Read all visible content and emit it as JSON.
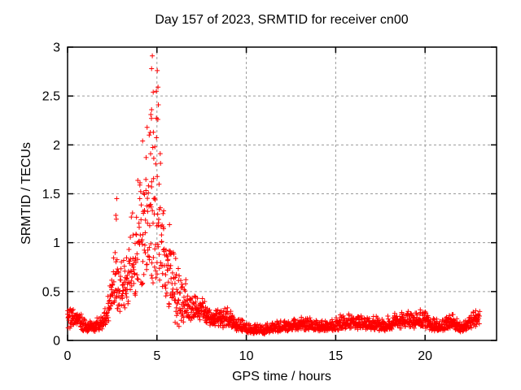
{
  "page": {
    "background_color": "#ffffff",
    "text_color": "#000000"
  },
  "chart_data": {
    "type": "scatter",
    "title": "Day 157 of 2023, SRMTID for receiver cn00",
    "xlabel": "GPS time / hours",
    "ylabel": "SRMTID / TECUs",
    "series_name": "SRMTID",
    "xlim": [
      0,
      24
    ],
    "ylim": [
      0,
      3
    ],
    "xticks": [
      {
        "v": 0,
        "label": "0"
      },
      {
        "v": 5,
        "label": "5"
      },
      {
        "v": 10,
        "label": "10"
      },
      {
        "v": 15,
        "label": "15"
      },
      {
        "v": 20,
        "label": "20"
      }
    ],
    "yticks": [
      {
        "v": 0,
        "label": "0"
      },
      {
        "v": 0.5,
        "label": "0.5"
      },
      {
        "v": 1,
        "label": "1"
      },
      {
        "v": 1.5,
        "label": "1.5"
      },
      {
        "v": 2,
        "label": "2"
      },
      {
        "v": 2.5,
        "label": "2.5"
      },
      {
        "v": 3,
        "label": "3"
      }
    ],
    "grid": "dashed",
    "legend": "none",
    "marker": "plus",
    "marker_size_px": 7,
    "marker_color": "#ff0000",
    "axis_color": "#000000",
    "grid_color": "#9a9a9a",
    "time_range": [
      0,
      23.05
    ],
    "sampling_interval_hours": 0.0125,
    "seed": 157,
    "envelope_lo_hi_by_hour": [
      [
        0.0,
        0.12,
        0.44
      ],
      [
        0.2,
        0.13,
        0.38
      ],
      [
        0.5,
        0.14,
        0.33
      ],
      [
        0.8,
        0.1,
        0.28
      ],
      [
        1.2,
        0.08,
        0.22
      ],
      [
        1.6,
        0.09,
        0.24
      ],
      [
        2.0,
        0.12,
        0.3
      ],
      [
        2.3,
        0.18,
        0.5
      ],
      [
        2.5,
        0.28,
        0.92
      ],
      [
        2.7,
        0.32,
        1.05
      ],
      [
        2.9,
        0.28,
        0.85
      ],
      [
        3.1,
        0.3,
        0.95
      ],
      [
        3.4,
        0.35,
        1.1
      ],
      [
        3.7,
        0.4,
        1.45
      ],
      [
        4.0,
        0.45,
        1.75
      ],
      [
        4.3,
        0.5,
        2.05
      ],
      [
        4.6,
        0.5,
        2.4
      ],
      [
        4.8,
        0.48,
        2.58
      ],
      [
        5.0,
        0.5,
        2.45
      ],
      [
        5.2,
        0.45,
        2.05
      ],
      [
        5.4,
        0.4,
        1.65
      ],
      [
        5.7,
        0.3,
        1.35
      ],
      [
        6.0,
        0.15,
        0.95
      ],
      [
        6.3,
        0.1,
        0.72
      ],
      [
        6.7,
        0.15,
        0.6
      ],
      [
        7.1,
        0.18,
        0.5
      ],
      [
        7.5,
        0.2,
        0.47
      ],
      [
        8.0,
        0.15,
        0.38
      ],
      [
        8.5,
        0.13,
        0.33
      ],
      [
        8.9,
        0.12,
        0.4
      ],
      [
        9.3,
        0.1,
        0.28
      ],
      [
        9.8,
        0.08,
        0.22
      ],
      [
        10.3,
        0.07,
        0.18
      ],
      [
        11.0,
        0.06,
        0.16
      ],
      [
        11.5,
        0.08,
        0.2
      ],
      [
        12.0,
        0.09,
        0.22
      ],
      [
        12.7,
        0.1,
        0.24
      ],
      [
        13.4,
        0.1,
        0.26
      ],
      [
        14.0,
        0.09,
        0.22
      ],
      [
        14.6,
        0.08,
        0.22
      ],
      [
        15.2,
        0.1,
        0.26
      ],
      [
        15.8,
        0.12,
        0.3
      ],
      [
        16.4,
        0.11,
        0.28
      ],
      [
        17.0,
        0.1,
        0.26
      ],
      [
        17.6,
        0.09,
        0.24
      ],
      [
        18.2,
        0.11,
        0.28
      ],
      [
        18.8,
        0.13,
        0.33
      ],
      [
        19.3,
        0.12,
        0.3
      ],
      [
        19.9,
        0.13,
        0.35
      ],
      [
        20.4,
        0.09,
        0.24
      ],
      [
        20.9,
        0.08,
        0.22
      ],
      [
        21.4,
        0.12,
        0.32
      ],
      [
        21.9,
        0.08,
        0.2
      ],
      [
        22.3,
        0.1,
        0.24
      ],
      [
        22.6,
        0.12,
        0.3
      ],
      [
        22.85,
        0.14,
        0.38
      ],
      [
        23.05,
        0.15,
        0.42
      ]
    ],
    "peak_points": [
      [
        4.74,
        2.91
      ],
      [
        4.7,
        2.78
      ],
      [
        5.02,
        2.76
      ],
      [
        5.06,
        2.59
      ],
      [
        4.97,
        2.55
      ],
      [
        4.79,
        2.54
      ],
      [
        5.08,
        2.41
      ],
      [
        4.7,
        2.36
      ],
      [
        4.66,
        2.31
      ],
      [
        4.69,
        2.27
      ],
      [
        5.05,
        2.26
      ],
      [
        4.8,
        2.13
      ],
      [
        4.57,
        2.1
      ],
      [
        4.45,
        2.18
      ],
      [
        4.2,
        2.04
      ],
      [
        4.88,
        1.98
      ],
      [
        2.75,
        1.45
      ],
      [
        2.7,
        1.28
      ],
      [
        2.73,
        1.24
      ]
    ]
  }
}
